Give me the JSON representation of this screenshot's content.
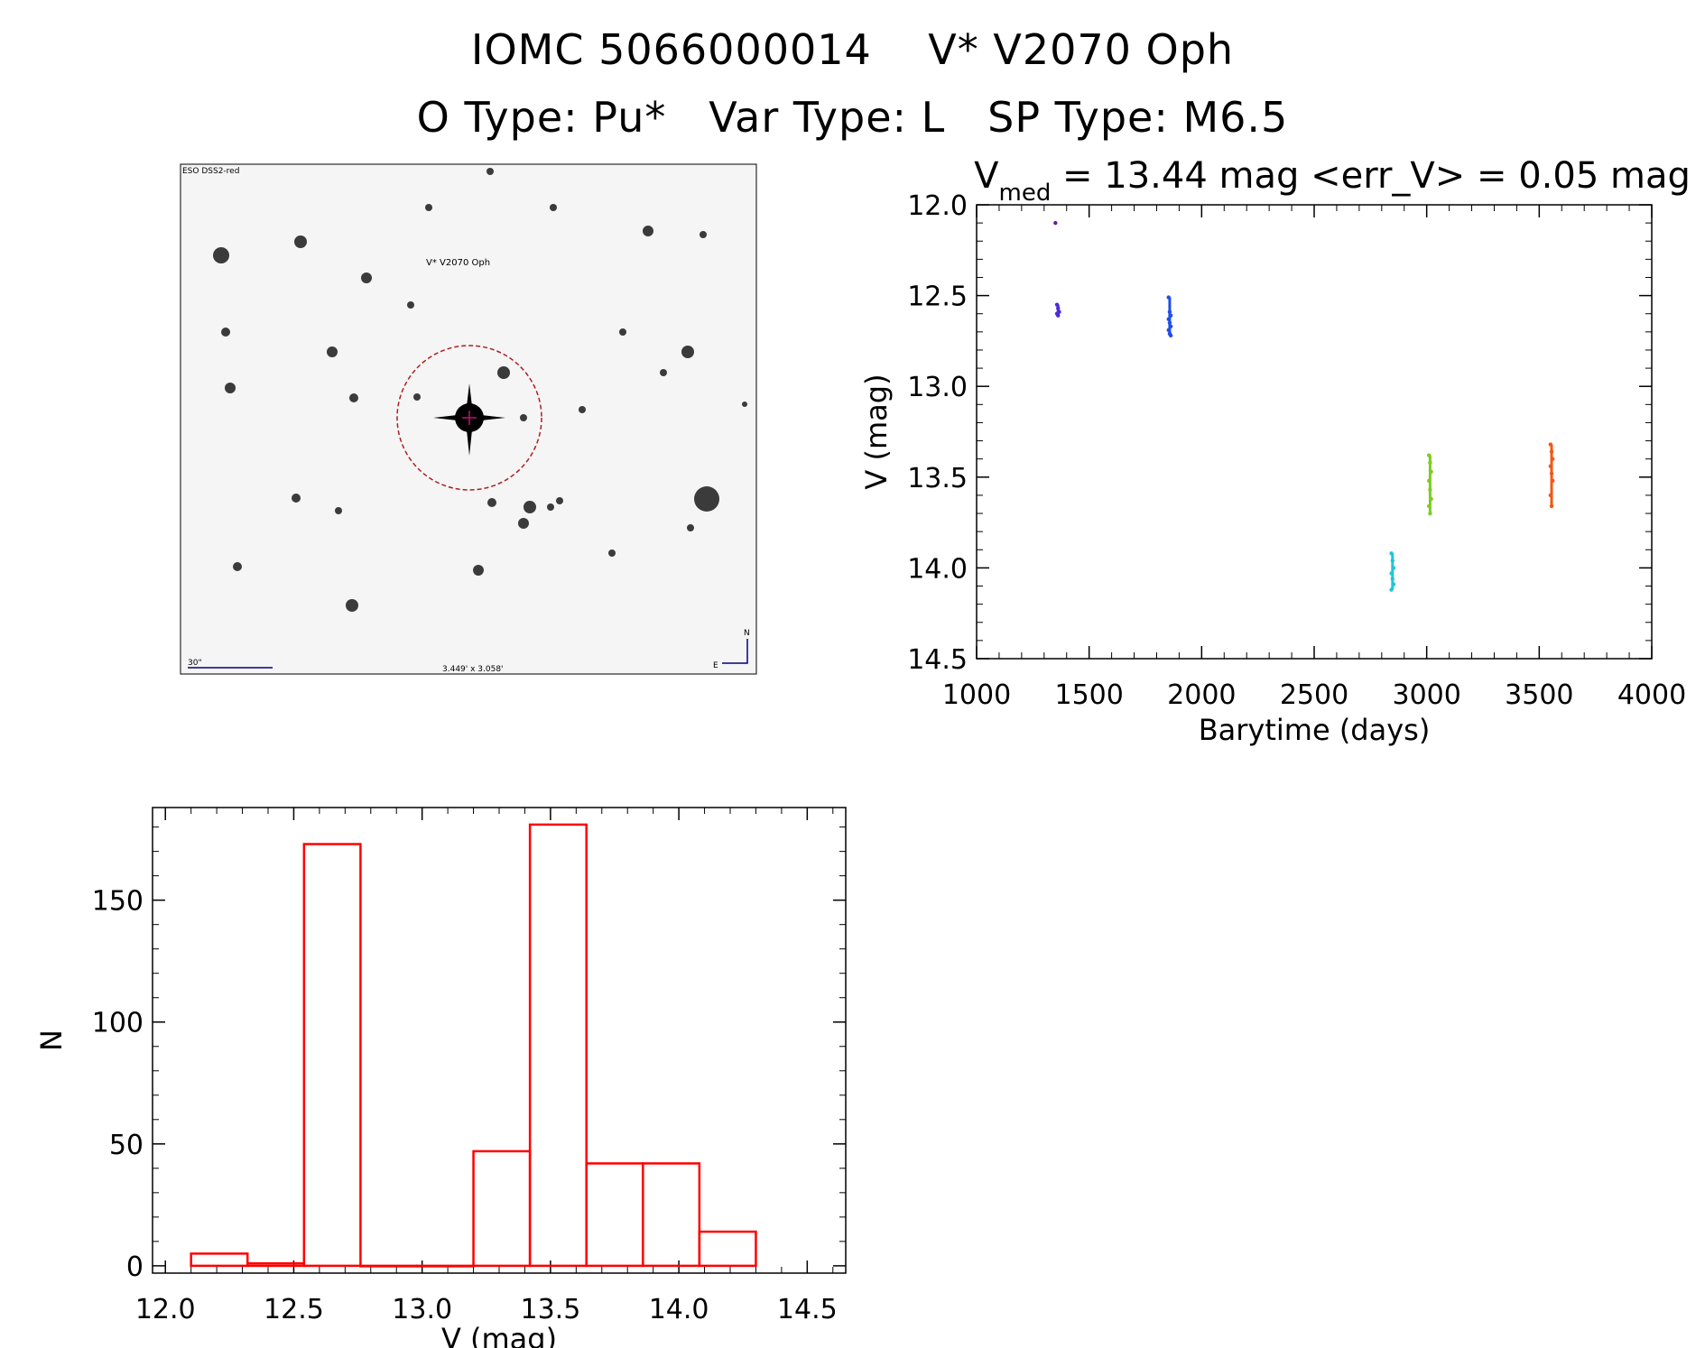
{
  "header": {
    "title_line1": "IOMC 5066000014    V* V2070 Oph",
    "title_line2": "O Type: Pu*   Var Type: L   SP Type: M6.5"
  },
  "finder_image": {
    "survey_label": "ESO DSS2-red",
    "target_label": "V* V2070 Oph",
    "scale_label": "30\"",
    "fov_label": "3.449' x 3.058'",
    "north_label": "N",
    "east_label": "E"
  },
  "chart_data": [
    {
      "type": "scatter",
      "title_main": "V",
      "title_sub": "med",
      "title_rest": " = 13.44 mag <err_V> = 0.05 mag",
      "xlabel": "Barytime (days)",
      "ylabel": "V (mag)",
      "xlim": [
        1000,
        4000
      ],
      "ylim": [
        14.5,
        12.0
      ],
      "y_inverted": true,
      "xticks": [
        1000,
        1500,
        2000,
        2500,
        3000,
        3500,
        4000
      ],
      "yticks": [
        12.0,
        12.5,
        13.0,
        13.5,
        14.0,
        14.5
      ],
      "groups": [
        {
          "x": 1355,
          "y": [
            12.1
          ],
          "color": "#6a1b9a"
        },
        {
          "x": 1362,
          "y": [
            12.55,
            12.57,
            12.59,
            12.6,
            12.61
          ],
          "color": "#4b2bd4"
        },
        {
          "x": 1858,
          "y": [
            12.51,
            12.59,
            12.61,
            12.63,
            12.65,
            12.67,
            12.69,
            12.71,
            12.72
          ],
          "color": "#1f4fe6"
        },
        {
          "x": 2848,
          "y": [
            13.92,
            13.96,
            14.0,
            14.03,
            14.06,
            14.09,
            14.12
          ],
          "color": "#22c4d8"
        },
        {
          "x": 3015,
          "y": [
            13.38,
            13.42,
            13.47,
            13.52,
            13.57,
            13.62,
            13.66,
            13.7
          ],
          "color": "#7ccc22"
        },
        {
          "x": 3555,
          "y": [
            13.32,
            13.36,
            13.4,
            13.44,
            13.48,
            13.52,
            13.6,
            13.66
          ],
          "color": "#f05a12"
        }
      ]
    },
    {
      "type": "bar",
      "subtype": "histogram",
      "xlabel": "V (mag)",
      "ylabel": "N",
      "xlim": [
        11.95,
        14.65
      ],
      "ylim": [
        -3,
        188
      ],
      "xticks": [
        12.0,
        12.5,
        13.0,
        13.5,
        14.0,
        14.5
      ],
      "yticks": [
        0,
        50,
        100,
        150
      ],
      "bin_edges": [
        12.1,
        12.32,
        12.54,
        12.76,
        12.98,
        13.2,
        13.42,
        13.64,
        13.86,
        14.08,
        14.3
      ],
      "counts": [
        5,
        1,
        173,
        0,
        0,
        47,
        181,
        42,
        42,
        14
      ],
      "color": "#ff0000"
    }
  ]
}
